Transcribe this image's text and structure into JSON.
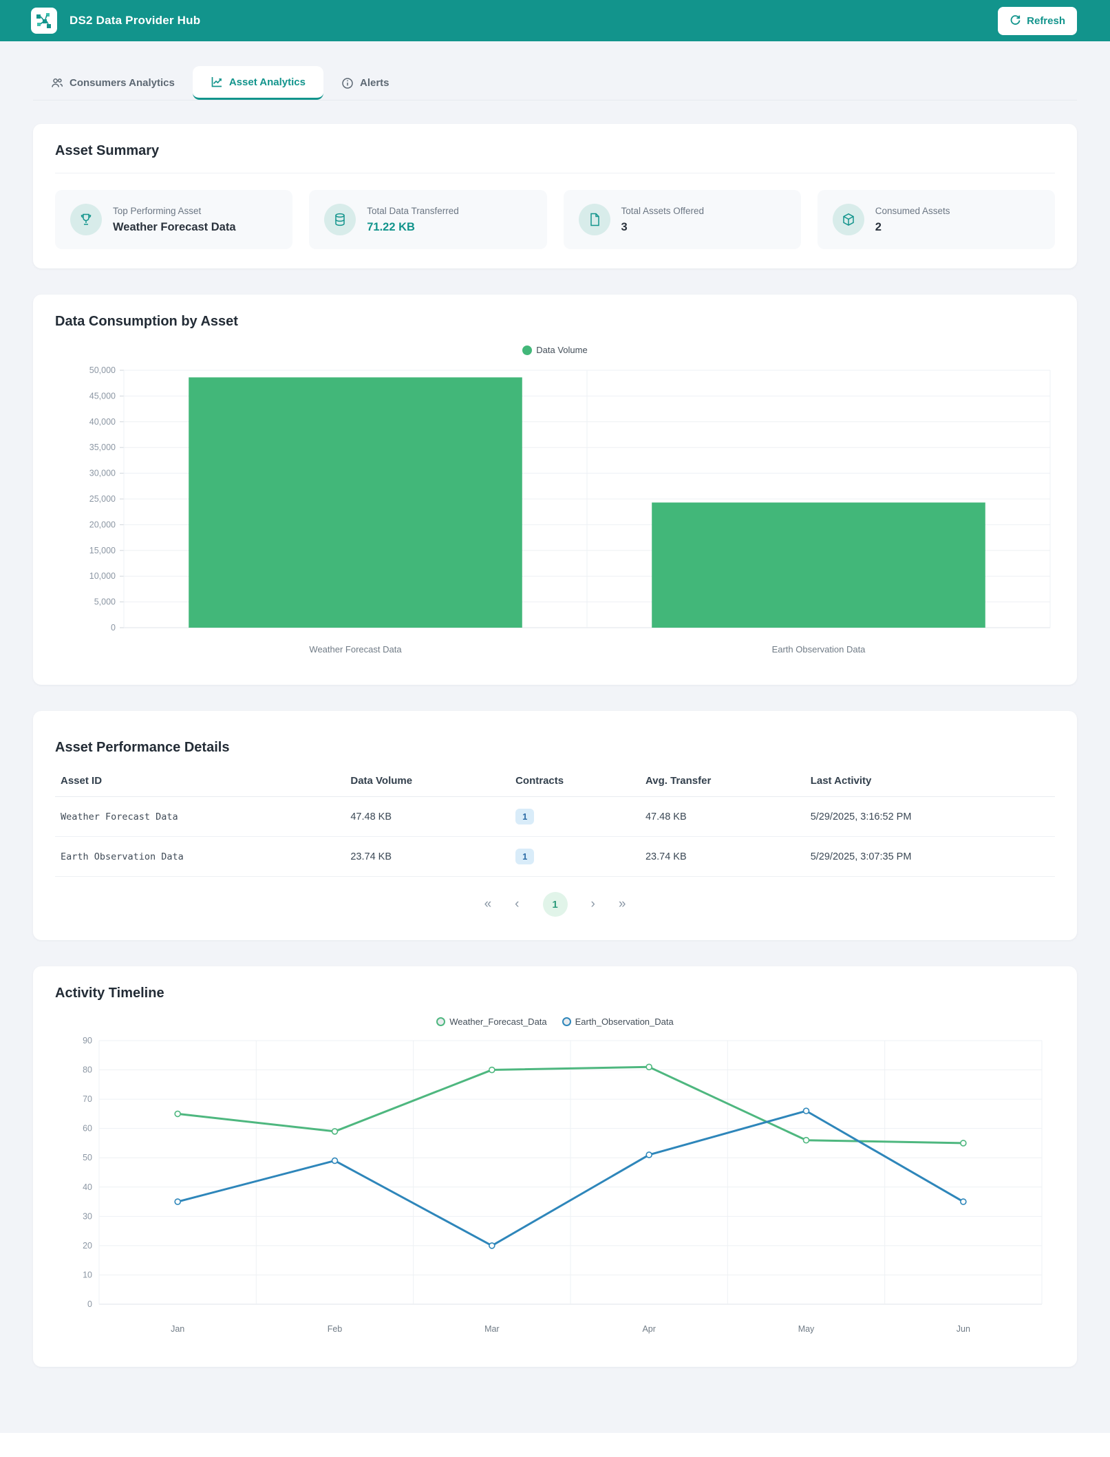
{
  "header": {
    "title": "DS2 Data Provider Hub",
    "refresh_label": "Refresh"
  },
  "tabs": [
    {
      "label": "Consumers Analytics",
      "active": false
    },
    {
      "label": "Asset Analytics",
      "active": true
    },
    {
      "label": "Alerts",
      "active": false
    }
  ],
  "summary": {
    "title": "Asset Summary",
    "stats": [
      {
        "icon": "trophy-icon",
        "label": "Top Performing Asset",
        "value": "Weather Forecast Data"
      },
      {
        "icon": "database-icon",
        "label": "Total Data Transferred",
        "value": "71.22 KB"
      },
      {
        "icon": "file-icon",
        "label": "Total Assets Offered",
        "value": "3"
      },
      {
        "icon": "box-icon",
        "label": "Consumed Assets",
        "value": "2"
      }
    ]
  },
  "chart_data": [
    {
      "type": "bar",
      "title": "Data Consumption by Asset",
      "legend": [
        "Data Volume"
      ],
      "categories": [
        "Weather Forecast Data",
        "Earth Observation Data"
      ],
      "values": [
        48620,
        24310
      ],
      "xlabel": "",
      "ylabel": "",
      "ylim": [
        0,
        50000
      ],
      "ytick_step": 5000,
      "grid": true,
      "legend_position": "top",
      "bar_color": "#42b779"
    },
    {
      "type": "line",
      "title": "Activity Timeline",
      "categories": [
        "Jan",
        "Feb",
        "Mar",
        "Apr",
        "May",
        "Jun"
      ],
      "series": [
        {
          "name": "Weather_Forecast_Data",
          "values": [
            65,
            59,
            80,
            81,
            56,
            55
          ],
          "color": "#4eb77f"
        },
        {
          "name": "Earth_Observation_Data",
          "values": [
            35,
            49,
            20,
            51,
            66,
            35
          ],
          "color": "#2e86ba"
        }
      ],
      "xlabel": "",
      "ylabel": "",
      "ylim": [
        0,
        90
      ],
      "ytick_step": 10,
      "grid": true,
      "legend_position": "top"
    }
  ],
  "table": {
    "title": "Asset Performance Details",
    "columns": [
      "Asset ID",
      "Data Volume",
      "Contracts",
      "Avg. Transfer",
      "Last Activity"
    ],
    "rows": [
      {
        "asset_id": "Weather Forecast Data",
        "data_volume": "47.48 KB",
        "contracts": "1",
        "avg_transfer": "47.48 KB",
        "last_activity": "5/29/2025, 3:16:52 PM"
      },
      {
        "asset_id": "Earth Observation Data",
        "data_volume": "23.74 KB",
        "contracts": "1",
        "avg_transfer": "23.74 KB",
        "last_activity": "5/29/2025, 3:07:35 PM"
      }
    ]
  },
  "pagination": {
    "first_label": "«",
    "prev_label": "‹",
    "page": "1",
    "next_label": "›",
    "last_label": "»"
  },
  "colors": {
    "brand_teal": "#12948c",
    "bar_green": "#42b779",
    "line_green": "#4eb77f",
    "line_blue": "#2e86ba",
    "badge_blue_bg": "#d9ecf9",
    "page_bg": "#f2f4f8"
  }
}
